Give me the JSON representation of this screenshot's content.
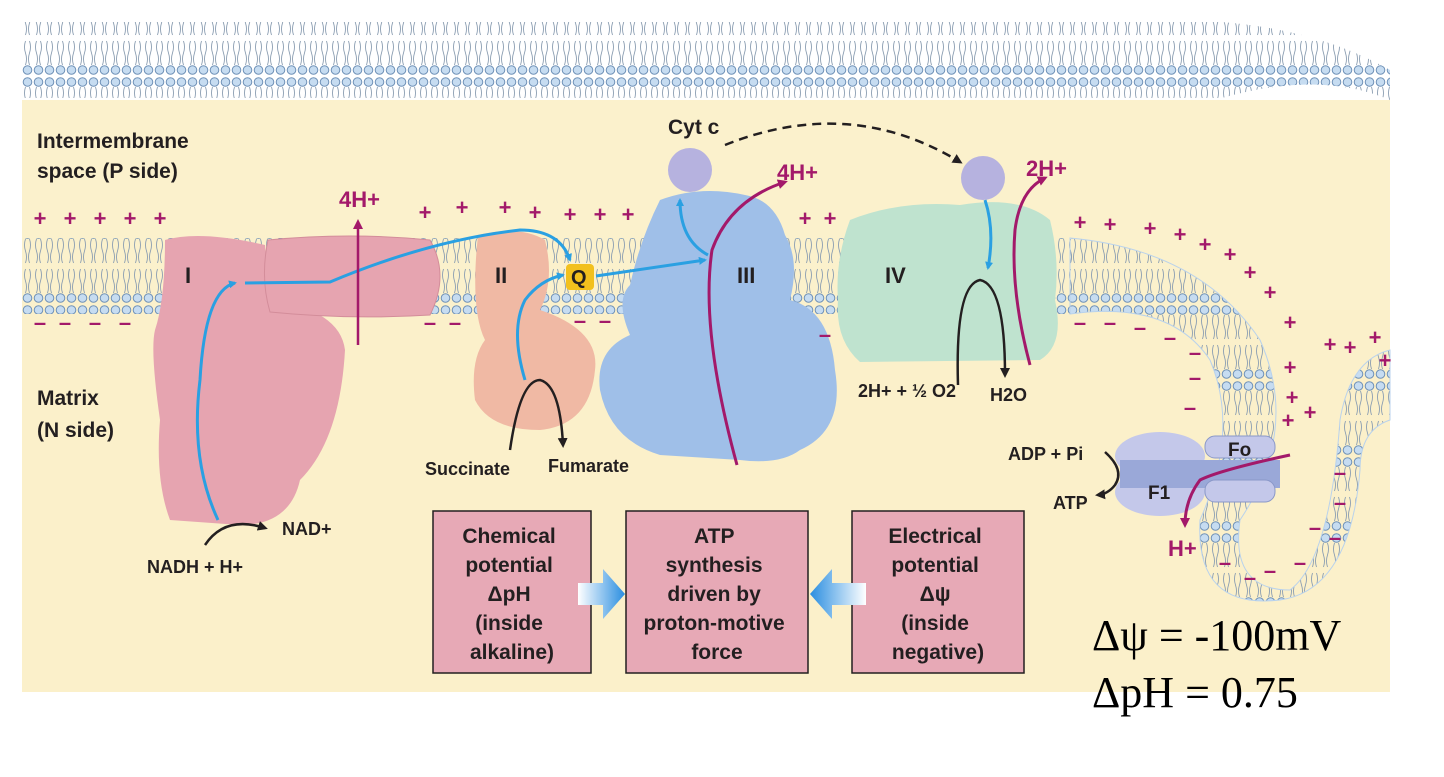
{
  "regions": {
    "intermembrane_line1": "Intermembrane",
    "intermembrane_line2": "space (P side)",
    "matrix_line1": "Matrix",
    "matrix_line2": "(N side)"
  },
  "complexes": {
    "c1": "I",
    "c2": "II",
    "q": "Q",
    "c3": "III",
    "c4": "IV",
    "cytc": "Cyt c",
    "fo": "Fo",
    "f1": "F1"
  },
  "substrates": {
    "nadh": "NADH + H+",
    "nad": "NAD+",
    "succinate": "Succinate",
    "fumarate": "Fumarate",
    "o2_reaction": "2H+ + ½ O2",
    "h2o": "H2O",
    "adp": "ADP + Pi",
    "atp": "ATP"
  },
  "protons": {
    "c1_out": "4H+",
    "c3_out": "4H+",
    "c4_out": "2H+",
    "atp_in": "H+"
  },
  "charges": {
    "positive": "+",
    "negative": "–"
  },
  "boxes": {
    "chemical": [
      "Chemical",
      "potential",
      "ΔpH",
      "(inside",
      "alkaline)"
    ],
    "atp": [
      "ATP",
      "synthesis",
      "driven by",
      "proton-motive",
      "force"
    ],
    "electrical": [
      "Electrical",
      "potential",
      "Δψ",
      "(inside",
      "negative)"
    ]
  },
  "values": {
    "delta_psi": "Δψ = -100mV",
    "delta_ph": "ΔpH = 0.75"
  },
  "colors": {
    "cream": "#fbf1cc",
    "membrane_head": "#b9d2ec",
    "complex_I": "#e6a4b0",
    "complex_II": "#f0b9a4",
    "complex_III": "#9fbfe8",
    "complex_IV": "#bfe3cf",
    "cytc": "#b6b2df",
    "atp_synthase": "#9aa8d8",
    "electron_arrow": "#2aa0e2",
    "proton_arrow": "#a3196a",
    "box_fill": "#e7a9b6"
  }
}
